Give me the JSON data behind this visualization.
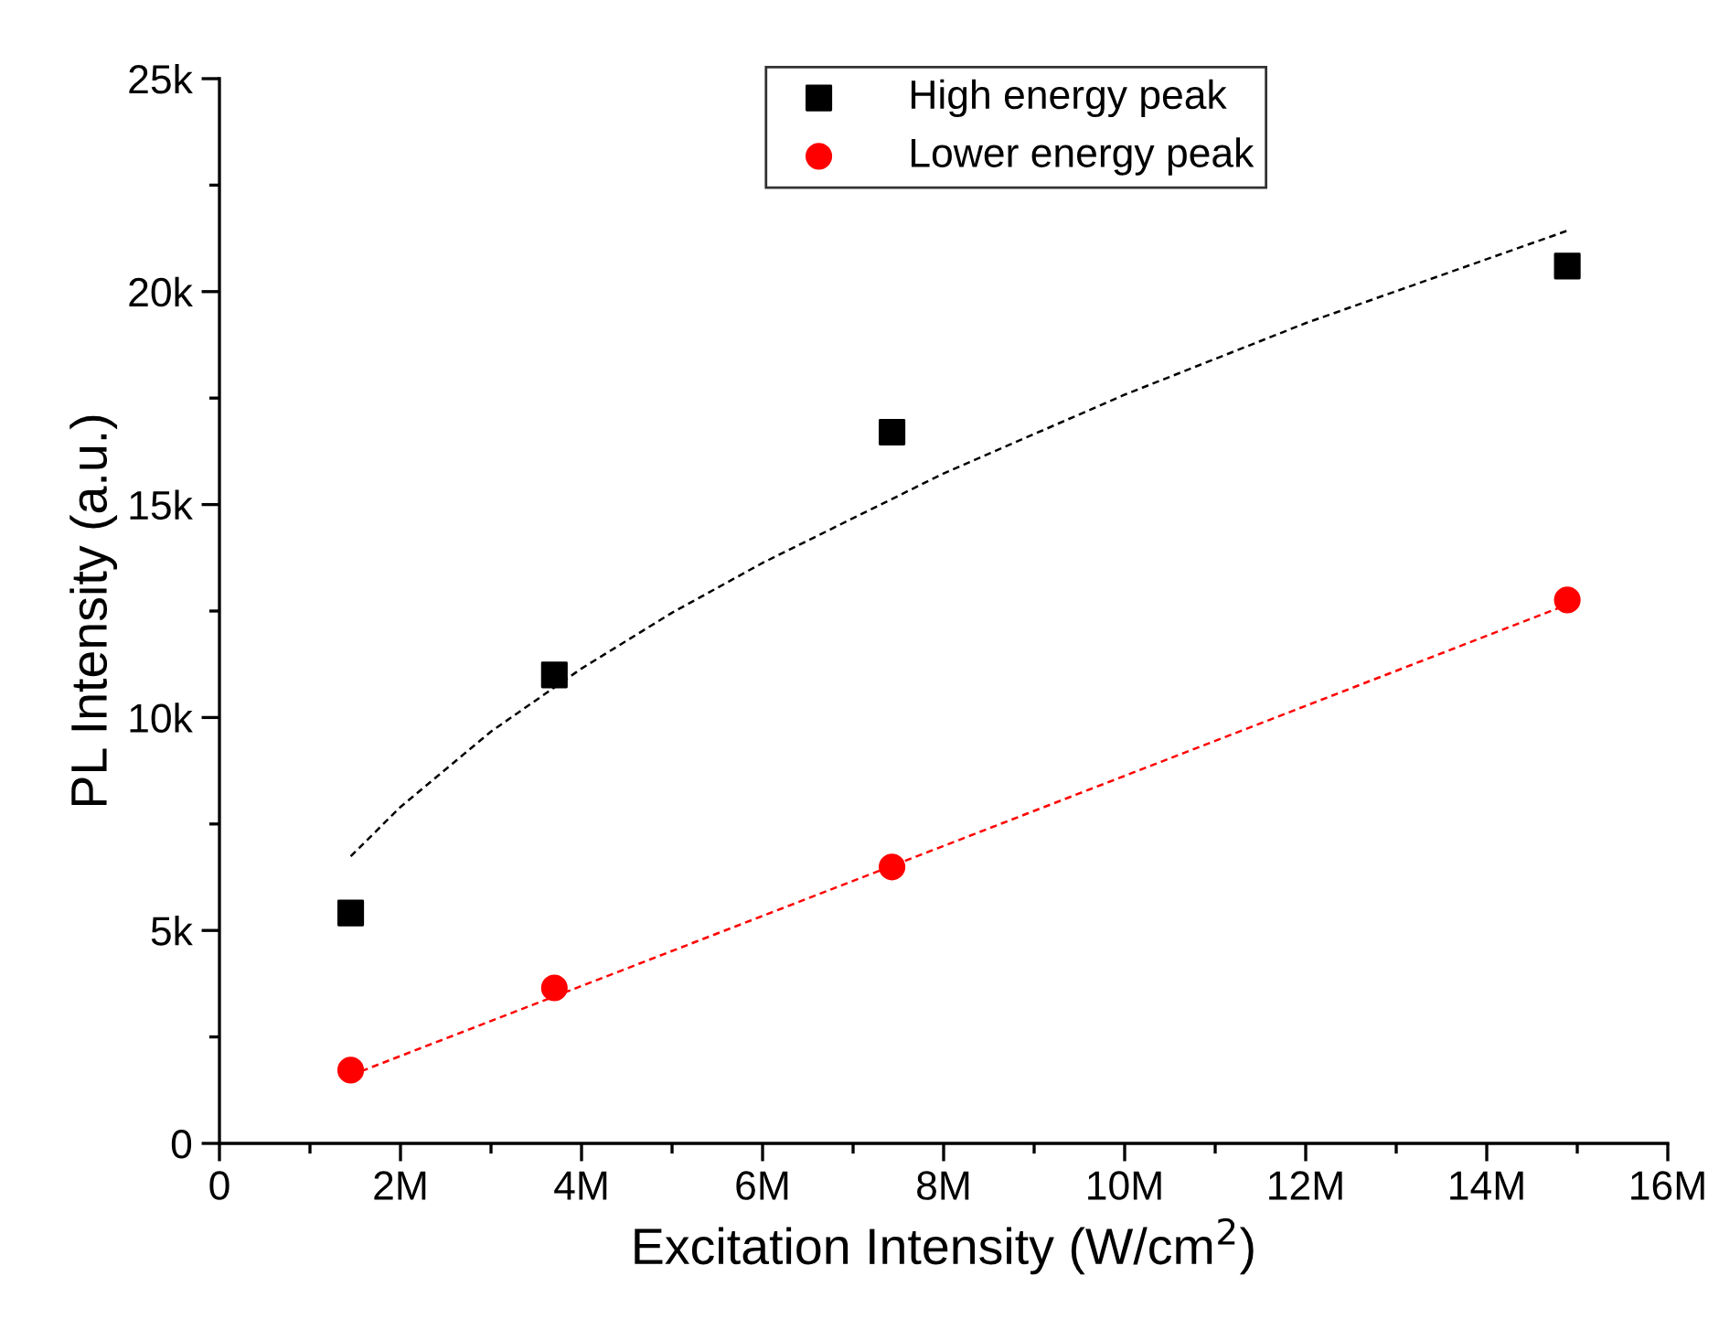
{
  "chart_data": {
    "type": "scatter",
    "xlabel": "Excitation Intensity (W/cm$^{2}$)",
    "ylabel": "PL Intensity (a.u.)",
    "x": [
      1450000,
      3700000,
      7430000,
      14890000
    ],
    "series": [
      {
        "name": "High energy peak",
        "color": "#000000",
        "marker": "square",
        "values": [
          5410,
          11000,
          16700,
          20600
        ]
      },
      {
        "name": "Lower energy peak",
        "color": "#ff0000",
        "marker": "circle",
        "values": [
          1720,
          3650,
          6490,
          12760
        ]
      },
      {
        "type": "line",
        "color": "#000000",
        "line_style": "dashed",
        "marker": "none",
        "x": [
          1450000,
          2000000,
          3000000,
          4000000,
          5000000,
          6000000,
          8000000,
          10000000,
          12000000,
          14890000
        ],
        "values": [
          6740,
          7900,
          9670,
          11150,
          12460,
          13630,
          15730,
          17580,
          19260,
          21430
        ]
      },
      {
        "type": "line",
        "color": "#ff0000",
        "line_style": "dashed",
        "marker": "none",
        "x": [
          1450000,
          14890000
        ],
        "values": [
          1600,
          12650
        ]
      }
    ],
    "xlim": [
      0,
      16000000
    ],
    "xticks": [
      {
        "value": 0,
        "label": "0"
      },
      {
        "value": 2000000,
        "label": "2M"
      },
      {
        "value": 4000000,
        "label": "4M"
      },
      {
        "value": 6000000,
        "label": "6M"
      },
      {
        "value": 8000000,
        "label": "8M"
      },
      {
        "value": 10000000,
        "label": "10M"
      },
      {
        "value": 12000000,
        "label": "12M"
      },
      {
        "value": 14000000,
        "label": "14M"
      },
      {
        "value": 16000000,
        "label": "16M"
      }
    ],
    "ylim": [
      0,
      25000
    ],
    "yticks": [
      {
        "value": 0,
        "label": "0"
      },
      {
        "value": 5000,
        "label": "5k"
      },
      {
        "value": 10000,
        "label": "10k"
      },
      {
        "value": 15000,
        "label": "15k"
      },
      {
        "value": 20000,
        "label": "20k"
      },
      {
        "value": 25000,
        "label": "25k"
      }
    ],
    "grid": false,
    "legend": "top"
  }
}
